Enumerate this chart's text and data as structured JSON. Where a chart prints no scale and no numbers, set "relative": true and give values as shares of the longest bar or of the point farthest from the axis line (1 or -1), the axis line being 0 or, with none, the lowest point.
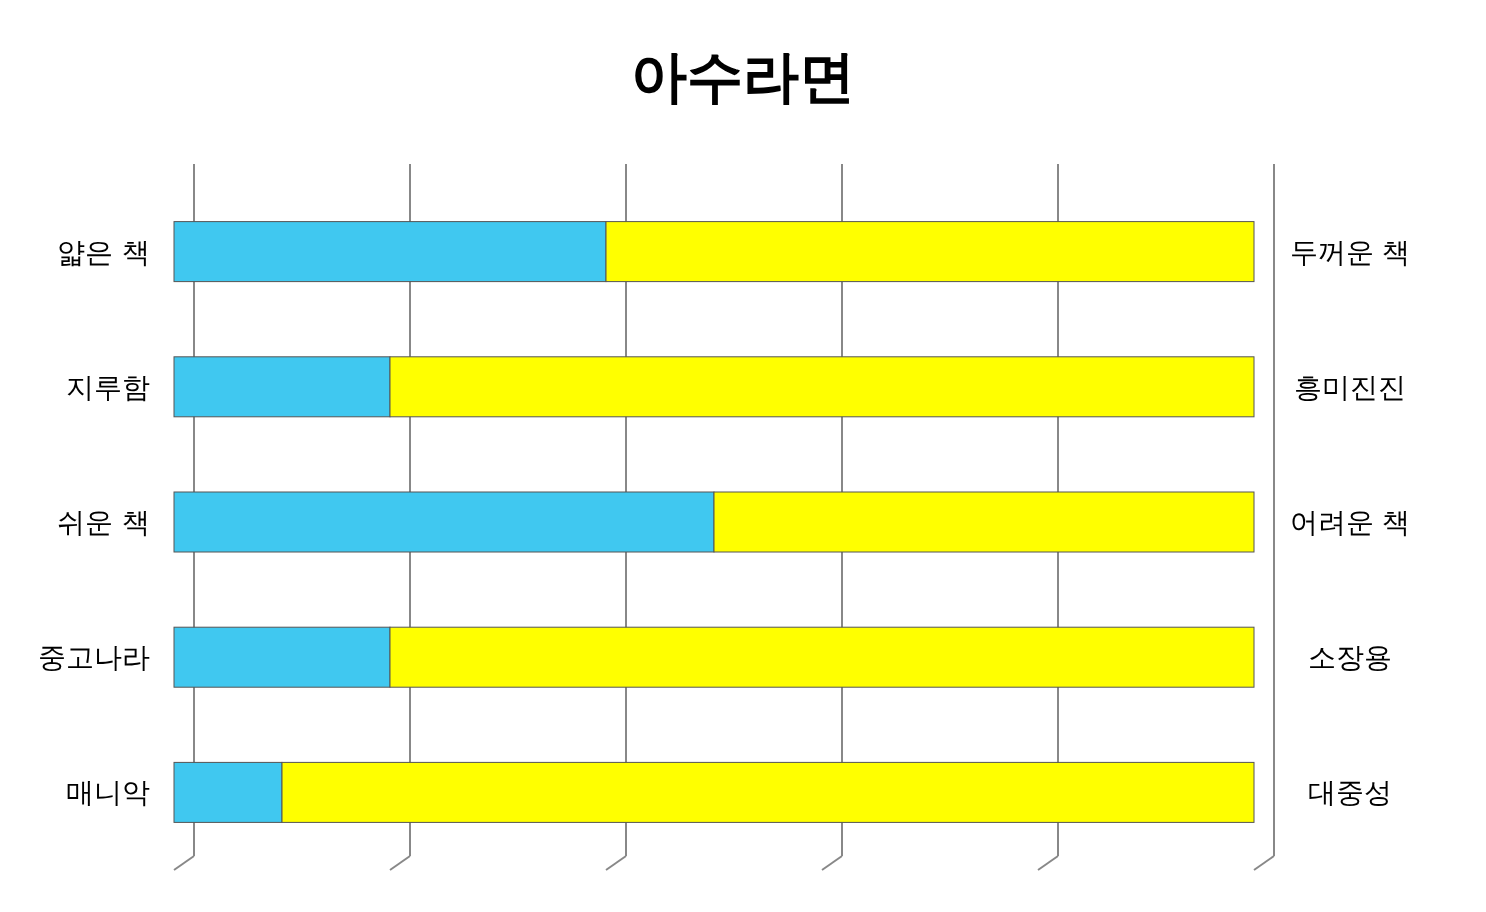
{
  "chart_data": {
    "type": "bar",
    "orientation": "horizontal",
    "stacked": true,
    "relative": true,
    "title": "아수라면",
    "categories": [
      "얇은 책",
      "지루함",
      "쉬운 책",
      "중고나라",
      "매니악"
    ],
    "y2_categories": [
      "두꺼운 책",
      "흥미진진",
      "어려운 책",
      "소장용",
      "대중성"
    ],
    "series": [
      {
        "color": "#40c8f0",
        "values": [
          0.4,
          0.2,
          0.5,
          0.2,
          0.1
        ]
      },
      {
        "color": "#ffff00",
        "values": [
          0.6,
          0.8,
          0.5,
          0.8,
          0.9
        ]
      }
    ],
    "grid": "x"
  }
}
